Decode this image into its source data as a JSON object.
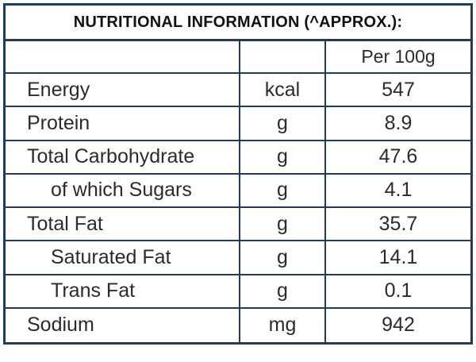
{
  "title": "NUTRITIONAL INFORMATION (^APPROX.):",
  "header": {
    "nutrient": "",
    "unit": "",
    "per": "Per 100g"
  },
  "rows": [
    {
      "nutrient": "Energy",
      "unit": "kcal",
      "value": "547"
    },
    {
      "nutrient": "Protein",
      "unit": "g",
      "value": "8.9"
    },
    {
      "nutrient": "Total Carbohydrate",
      "unit": "g",
      "value": "47.6"
    },
    {
      "nutrient": "of which Sugars",
      "unit": "g",
      "value": "4.1"
    },
    {
      "nutrient": "Total Fat",
      "unit": "g",
      "value": "35.7"
    },
    {
      "nutrient": "Saturated Fat",
      "unit": "g",
      "value": "14.1"
    },
    {
      "nutrient": "Trans Fat",
      "unit": "g",
      "value": "0.1"
    },
    {
      "nutrient": "Sodium",
      "unit": "mg",
      "value": "942"
    }
  ],
  "colors": {
    "border": "#1f3a63",
    "text": "#2b2b2b",
    "title_text": "#111111"
  }
}
